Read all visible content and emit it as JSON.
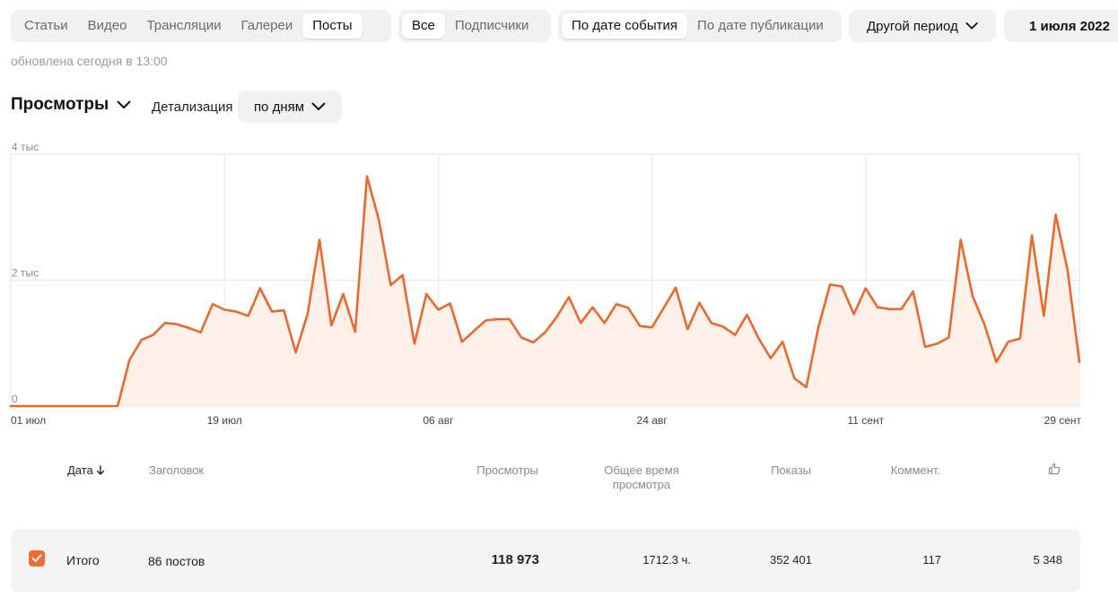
{
  "tabs": {
    "content": [
      "Статьи",
      "Видео",
      "Трансляции",
      "Галереи",
      "Посты"
    ],
    "content_active": "Посты",
    "audience": [
      "Все",
      "Подписчики"
    ],
    "audience_active": "Все",
    "date_mode": [
      "По дате события",
      "По дате публикации"
    ],
    "date_mode_active": "По дате события"
  },
  "period_dropdown": "Другой период",
  "date_start": "1 июля 2022",
  "updated_text": "обновлена сегодня в 13:00",
  "metric_selector": "Просмотры",
  "detail_label": "Детализация",
  "detail_value": "по дням",
  "chart_data": {
    "type": "area",
    "y_ticks": [
      {
        "value": 0,
        "label": "0"
      },
      {
        "value": 2000,
        "label": "2 тыс"
      },
      {
        "value": 4000,
        "label": "4 тыс"
      }
    ],
    "ylim": [
      0,
      4000
    ],
    "x_tick_labels": [
      "01 июл",
      "19 июл",
      "06 авг",
      "24 авг",
      "11 сент",
      "29 сент"
    ],
    "x_range": [
      "2022-07-01",
      "2022-09-30"
    ],
    "grid": true,
    "series": [
      {
        "values": [
          0,
          0,
          0,
          0,
          0,
          0,
          0,
          0,
          0,
          0,
          730,
          1050,
          1130,
          1320,
          1300,
          1240,
          1170,
          1620,
          1530,
          1500,
          1430,
          1870,
          1500,
          1520,
          850,
          1460,
          2640,
          1280,
          1780,
          1180,
          3650,
          2960,
          1920,
          2080,
          990,
          1780,
          1530,
          1630,
          1020,
          1190,
          1360,
          1380,
          1380,
          1090,
          1010,
          1170,
          1420,
          1730,
          1320,
          1570,
          1320,
          1620,
          1560,
          1270,
          1250,
          1560,
          1880,
          1220,
          1640,
          1320,
          1260,
          1130,
          1450,
          1070,
          760,
          1020,
          440,
          300,
          1240,
          1930,
          1900,
          1460,
          1870,
          1570,
          1540,
          1540,
          1820,
          940,
          990,
          1090,
          2640,
          1750,
          1300,
          700,
          1020,
          1070,
          2710,
          1430,
          3040,
          2160,
          700
        ]
      }
    ],
    "line_color": "#e86a2e",
    "fill_color": "#fdf1ea"
  },
  "table": {
    "headers": {
      "date": "Дата",
      "title": "Заголовок",
      "views": "Просмотры",
      "watch_time_1": "Общее время",
      "watch_time_2": "просмотра",
      "impressions": "Показы",
      "comments": "Коммент."
    },
    "summary": {
      "label": "Итого",
      "posts": "86 постов",
      "views": "118 973",
      "watch_time": "1712.3 ч.",
      "impressions": "352 401",
      "comments": "117",
      "likes": "5 348"
    }
  },
  "colors": {
    "accent": "#ee6d33",
    "muted": "#8a8a8a",
    "pill": "#f1f1f2"
  }
}
